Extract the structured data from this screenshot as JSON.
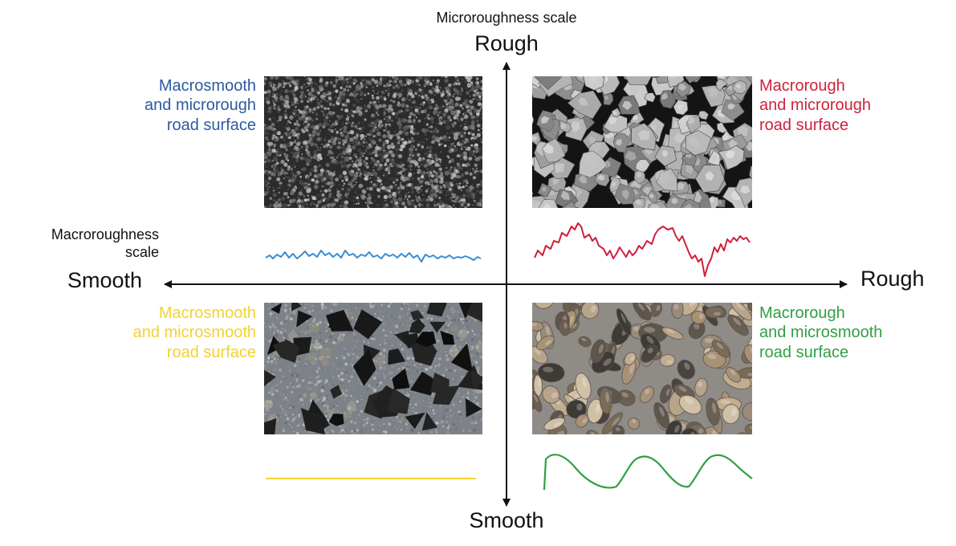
{
  "axes": {
    "vertical_caption": "Microroughness scale",
    "vertical_top": "Rough",
    "vertical_bottom": "Smooth",
    "horizontal_caption_line1": "Macroroughness",
    "horizontal_caption_line2": "scale",
    "horizontal_left": "Smooth",
    "horizontal_right": "Rough"
  },
  "quadrants": {
    "top_left": {
      "line1": "Macrosmooth",
      "line2": "and microrough",
      "line3": "road surface",
      "color": "#2c5aa0",
      "texture": "fine-asphalt"
    },
    "top_right": {
      "line1": "Macrorough",
      "line2": "and microrough",
      "line3": "road surface",
      "color": "#d0203c",
      "texture": "coarse-aggregate"
    },
    "bottom_left": {
      "line1": "Macrosmooth",
      "line2": "and microsmooth",
      "line3": "road surface",
      "color": "#f2d233",
      "texture": "polished-terrazzo"
    },
    "bottom_right": {
      "line1": "Macrorough",
      "line2": "and microsmooth",
      "line3": "road surface",
      "color": "#2ea043",
      "texture": "rounded-pebbles"
    }
  },
  "colors": {
    "axis": "#111111",
    "profile_blue": "#3a8dd0",
    "profile_red": "#d0203c",
    "profile_yellow": "#f2d233",
    "profile_green": "#2ea043"
  }
}
